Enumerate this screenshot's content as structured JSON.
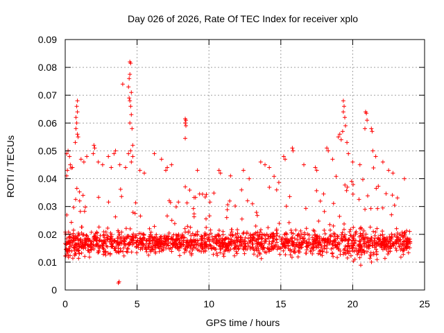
{
  "chart_data": {
    "type": "scatter",
    "title": "Day 026 of 2026, Rate Of TEC Index for receiver xplo",
    "xlabel": "GPS time / hours",
    "ylabel": "ROTI / TECUs",
    "xlim": [
      0,
      25
    ],
    "ylim": [
      0,
      0.09
    ],
    "xticks": [
      0,
      5,
      10,
      15,
      20,
      25
    ],
    "xtick_labels": [
      "0",
      "5",
      "10",
      "15",
      "20",
      "25"
    ],
    "yticks": [
      0,
      0.01,
      0.02,
      0.03,
      0.04,
      0.05,
      0.06,
      0.07,
      0.08,
      0.09
    ],
    "ytick_labels": [
      "0",
      "0.01",
      "0.02",
      "0.03",
      "0.04",
      "0.05",
      "0.06",
      "0.07",
      "0.08",
      "0.09"
    ],
    "grid": true,
    "marker": "+",
    "color": "#ff0000",
    "series": [
      {
        "name": "ROTI",
        "description": "dense cloud of ROTI samples between 0 and 24 h, mostly 0.005–0.035 TECU/min",
        "points": [
          [
            4.5,
            0.082
          ],
          [
            4.55,
            0.0815
          ],
          [
            4.5,
            0.0775
          ],
          [
            4.45,
            0.076
          ],
          [
            4.0,
            0.074
          ],
          [
            4.4,
            0.073
          ],
          [
            4.6,
            0.071
          ],
          [
            4.45,
            0.069
          ],
          [
            4.5,
            0.068
          ],
          [
            4.55,
            0.066
          ],
          [
            4.6,
            0.063
          ],
          [
            4.5,
            0.06
          ],
          [
            4.65,
            0.058
          ],
          [
            4.7,
            0.052
          ],
          [
            4.55,
            0.05
          ],
          [
            4.4,
            0.049
          ],
          [
            4.7,
            0.048
          ],
          [
            4.6,
            0.046
          ],
          [
            0.85,
            0.068
          ],
          [
            0.8,
            0.066
          ],
          [
            0.85,
            0.064
          ],
          [
            0.75,
            0.062
          ],
          [
            0.8,
            0.06
          ],
          [
            0.75,
            0.058
          ],
          [
            0.85,
            0.056
          ],
          [
            0.9,
            0.055
          ],
          [
            0.7,
            0.053
          ],
          [
            0.2,
            0.05
          ],
          [
            0.1,
            0.049
          ],
          [
            0.3,
            0.048
          ],
          [
            2.0,
            0.052
          ],
          [
            2.05,
            0.051
          ],
          [
            1.95,
            0.049
          ],
          [
            3.0,
            0.048
          ],
          [
            3.5,
            0.05
          ],
          [
            3.4,
            0.049
          ],
          [
            8.35,
            0.0615
          ],
          [
            8.4,
            0.061
          ],
          [
            8.35,
            0.06
          ],
          [
            8.4,
            0.059
          ],
          [
            8.35,
            0.0545
          ],
          [
            6.2,
            0.049
          ],
          [
            6.7,
            0.047
          ],
          [
            7.1,
            0.044
          ],
          [
            7.4,
            0.045
          ],
          [
            7.0,
            0.043
          ],
          [
            9.2,
            0.043
          ],
          [
            10.7,
            0.043
          ],
          [
            10.8,
            0.042
          ],
          [
            11.5,
            0.041
          ],
          [
            12.4,
            0.043
          ],
          [
            12.8,
            0.04
          ],
          [
            13.6,
            0.046
          ],
          [
            13.9,
            0.045
          ],
          [
            14.2,
            0.044
          ],
          [
            15.2,
            0.048
          ],
          [
            15.3,
            0.047
          ],
          [
            15.8,
            0.051
          ],
          [
            15.85,
            0.05
          ],
          [
            16.6,
            0.045
          ],
          [
            17.4,
            0.044
          ],
          [
            17.5,
            0.043
          ],
          [
            18.2,
            0.051
          ],
          [
            18.3,
            0.05
          ],
          [
            18.6,
            0.047
          ],
          [
            19.0,
            0.055
          ],
          [
            19.1,
            0.056
          ],
          [
            19.2,
            0.054
          ],
          [
            19.35,
            0.068
          ],
          [
            19.4,
            0.066
          ],
          [
            19.35,
            0.064
          ],
          [
            19.45,
            0.062
          ],
          [
            19.5,
            0.059
          ],
          [
            19.3,
            0.057
          ],
          [
            19.6,
            0.053
          ],
          [
            19.7,
            0.049
          ],
          [
            20.0,
            0.046
          ],
          [
            20.5,
            0.045
          ],
          [
            20.9,
            0.064
          ],
          [
            20.95,
            0.0635
          ],
          [
            21.0,
            0.061
          ],
          [
            20.85,
            0.058
          ],
          [
            21.3,
            0.058
          ],
          [
            21.35,
            0.057
          ],
          [
            21.4,
            0.05
          ],
          [
            21.6,
            0.048
          ],
          [
            22.1,
            0.046
          ],
          [
            22.5,
            0.043
          ],
          [
            22.8,
            0.042
          ],
          [
            23.6,
            0.04
          ],
          [
            3.75,
            0.003
          ],
          [
            3.7,
            0.0025
          ],
          [
            0.1,
            0.041
          ],
          [
            0.15,
            0.043
          ],
          [
            0.35,
            0.045
          ],
          [
            0.5,
            0.044
          ],
          [
            1.1,
            0.047
          ],
          [
            1.3,
            0.046
          ],
          [
            1.5,
            0.048
          ],
          [
            2.3,
            0.046
          ],
          [
            2.6,
            0.045
          ],
          [
            3.2,
            0.044
          ],
          [
            3.8,
            0.045
          ],
          [
            4.2,
            0.044
          ],
          [
            5.2,
            0.043
          ],
          [
            5.5,
            0.042
          ]
        ],
        "dense_band": {
          "x_range": [
            0,
            24
          ],
          "y_core": [
            0.008,
            0.028
          ],
          "y_mean": 0.017
        }
      }
    ]
  }
}
